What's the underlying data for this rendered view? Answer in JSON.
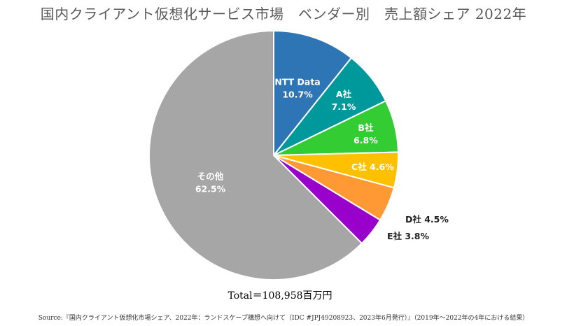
{
  "chart_data": {
    "type": "pie",
    "title": "国内クライアント仮想化サービス市場　ベンダー別　売上額シェア 2022年",
    "slices": [
      {
        "name": "NTT Data",
        "value": 10.7,
        "label": "10.7%",
        "color": "#2e75b6",
        "label_position": "inside"
      },
      {
        "name": "A社",
        "value": 7.1,
        "label": "7.1%",
        "color": "#00999b",
        "label_position": "inside"
      },
      {
        "name": "B社",
        "value": 6.8,
        "label": "6.8%",
        "color": "#33cc33",
        "label_position": "inside"
      },
      {
        "name": "C社",
        "value": 4.6,
        "label": "4.6%",
        "color": "#ffc000",
        "label_position": "inside"
      },
      {
        "name": "D社",
        "value": 4.5,
        "label": "4.5%",
        "color": "#ff9933",
        "label_position": "outside"
      },
      {
        "name": "E社",
        "value": 3.8,
        "label": "3.8%",
        "color": "#9900cc",
        "label_position": "outside"
      },
      {
        "name": "その他",
        "value": 62.5,
        "label": "62.5%",
        "color": "#a6a6a6",
        "label_position": "inside"
      }
    ],
    "start": "12 o'clock",
    "direction": "clockwise",
    "total": "Total＝108,958百万円"
  },
  "source": "Source:『国内クライアント仮想化市場シェア、2022年：ランドスケープ構想へ向けて（IDC #JPJ49208923、2023年6月発行）』（2019年〜2022年の4年における結果）"
}
